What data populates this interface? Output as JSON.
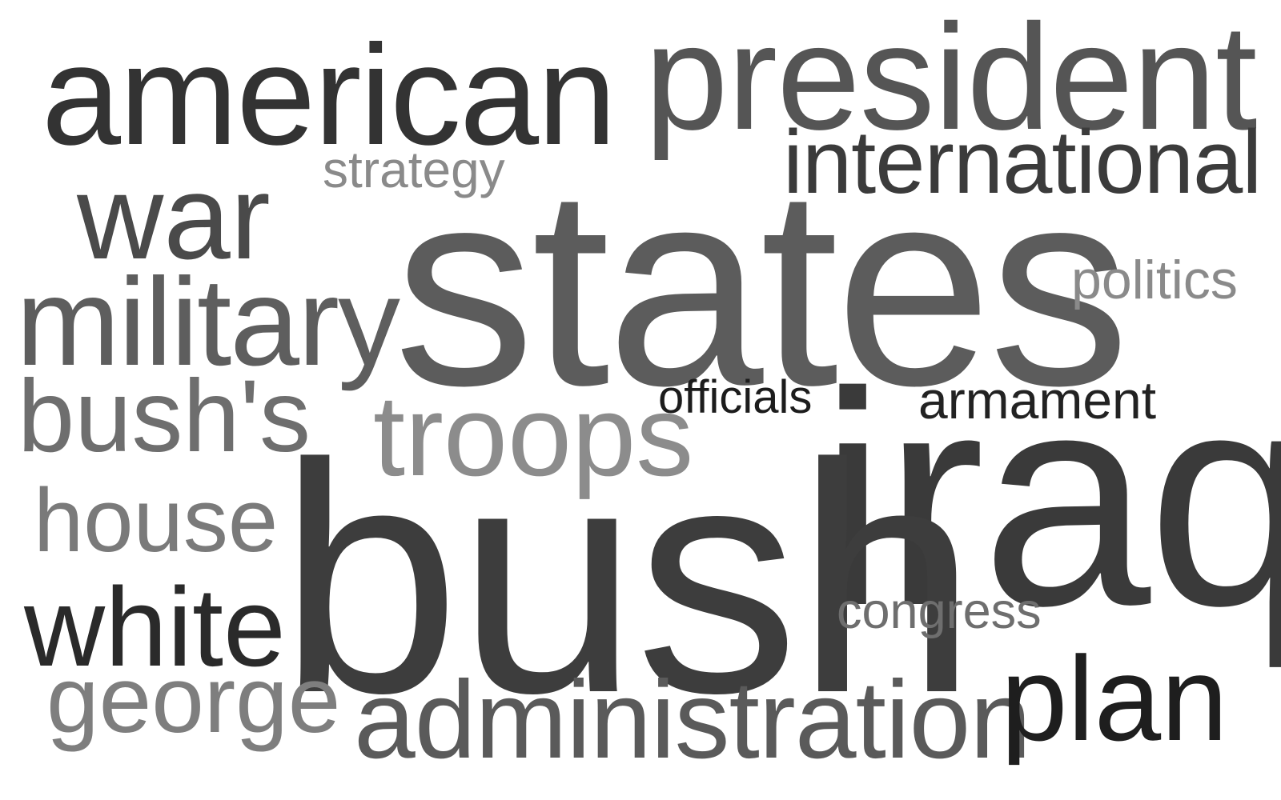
{
  "words": [
    {
      "text": "american",
      "color": "#333333"
    },
    {
      "text": "president",
      "color": "#555555"
    },
    {
      "text": "international",
      "color": "#3b3b3b"
    },
    {
      "text": "strategy",
      "color": "#8a8a8a"
    },
    {
      "text": "war",
      "color": "#4a4a4a"
    },
    {
      "text": "states",
      "color": "#5c5c5c"
    },
    {
      "text": "politics",
      "color": "#8a8a8a"
    },
    {
      "text": "military",
      "color": "#5e5e5e"
    },
    {
      "text": "bush's",
      "color": "#6e6e6e"
    },
    {
      "text": "troops",
      "color": "#8c8c8c"
    },
    {
      "text": "officials",
      "color": "#1c1c1c"
    },
    {
      "text": "armament",
      "color": "#222222"
    },
    {
      "text": "iraq",
      "color": "#3a3a3a"
    },
    {
      "text": "house",
      "color": "#7a7a7a"
    },
    {
      "text": "bush",
      "color": "#3d3d3d"
    },
    {
      "text": "white",
      "color": "#2a2a2a"
    },
    {
      "text": "congress",
      "color": "#6e6e6e"
    },
    {
      "text": "george",
      "color": "#7e7e7e"
    },
    {
      "text": "administration",
      "color": "#5a5a5a"
    },
    {
      "text": "plan",
      "color": "#1e1e1e"
    }
  ]
}
